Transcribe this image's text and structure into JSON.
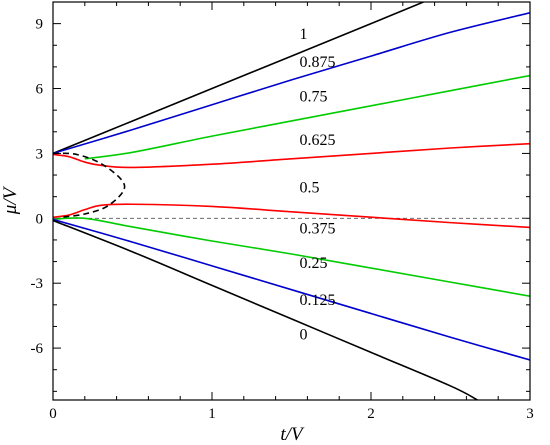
{
  "chart_data": {
    "type": "line",
    "xlabel": "t/V",
    "ylabel": "μ/V",
    "xlim": [
      0,
      3
    ],
    "ylim": [
      -8.4,
      10
    ],
    "x_ticks": [
      0,
      1,
      2,
      3
    ],
    "y_ticks": [
      -6,
      -3,
      0,
      3,
      6,
      9
    ],
    "grid": false,
    "series": [
      {
        "name": "1",
        "color": "#000000",
        "points": [
          [
            0,
            3.0
          ],
          [
            0.5,
            4.5
          ],
          [
            1.0,
            6.0
          ],
          [
            1.5,
            7.5
          ],
          [
            2.0,
            9.0
          ],
          [
            2.33,
            10.0
          ]
        ]
      },
      {
        "name": "0.875",
        "color": "#0000cc",
        "points": [
          [
            0,
            3.0
          ],
          [
            0.5,
            4.1
          ],
          [
            1.0,
            5.25
          ],
          [
            1.5,
            6.4
          ],
          [
            2.0,
            7.5
          ],
          [
            2.5,
            8.6
          ],
          [
            3.0,
            9.5
          ]
        ]
      },
      {
        "name": "0.75",
        "color": "#00cc00",
        "points": [
          [
            0.2,
            2.75
          ],
          [
            0.5,
            3.05
          ],
          [
            1.0,
            3.8
          ],
          [
            1.5,
            4.5
          ],
          [
            2.0,
            5.2
          ],
          [
            2.5,
            5.9
          ],
          [
            3.0,
            6.6
          ]
        ]
      },
      {
        "name": "0.625",
        "color": "#ff0000",
        "points": [
          [
            0,
            2.95
          ],
          [
            0.1,
            2.85
          ],
          [
            0.2,
            2.6
          ],
          [
            0.3,
            2.45
          ],
          [
            0.5,
            2.35
          ],
          [
            1.0,
            2.5
          ],
          [
            1.5,
            2.75
          ],
          [
            2.0,
            3.0
          ],
          [
            2.5,
            3.25
          ],
          [
            3.0,
            3.45
          ]
        ]
      },
      {
        "name": "0.375",
        "color": "#ff0000",
        "points": [
          [
            0,
            0.05
          ],
          [
            0.1,
            0.15
          ],
          [
            0.2,
            0.4
          ],
          [
            0.3,
            0.6
          ],
          [
            0.5,
            0.65
          ],
          [
            1.0,
            0.55
          ],
          [
            1.5,
            0.3
          ],
          [
            2.0,
            0.05
          ],
          [
            2.5,
            -0.2
          ],
          [
            3.0,
            -0.42
          ]
        ]
      },
      {
        "name": "0.25",
        "color": "#00cc00",
        "points": [
          [
            0,
            -0.05
          ],
          [
            0.2,
            0.0
          ],
          [
            0.5,
            -0.4
          ],
          [
            1.0,
            -1.05
          ],
          [
            1.5,
            -1.65
          ],
          [
            2.0,
            -2.3
          ],
          [
            2.5,
            -2.95
          ],
          [
            3.0,
            -3.6
          ]
        ]
      },
      {
        "name": "0.125",
        "color": "#0000cc",
        "points": [
          [
            0,
            -0.05
          ],
          [
            0.5,
            -1.1
          ],
          [
            1.0,
            -2.2
          ],
          [
            1.5,
            -3.3
          ],
          [
            2.0,
            -4.4
          ],
          [
            2.5,
            -5.5
          ],
          [
            3.0,
            -6.55
          ]
        ]
      },
      {
        "name": "0",
        "color": "#000000",
        "points": [
          [
            0,
            -0.1
          ],
          [
            0.5,
            -1.55
          ],
          [
            1.0,
            -3.1
          ],
          [
            1.5,
            -4.65
          ],
          [
            2.0,
            -6.2
          ],
          [
            2.5,
            -7.75
          ],
          [
            2.67,
            -8.4
          ]
        ]
      }
    ],
    "boundary": {
      "color": "#000000",
      "points": [
        [
          0,
          3.0
        ],
        [
          0.15,
          2.95
        ],
        [
          0.32,
          2.45
        ],
        [
          0.45,
          1.5
        ],
        [
          0.35,
          0.6
        ],
        [
          0.2,
          0.2
        ],
        [
          0.05,
          0.05
        ]
      ]
    },
    "zero_line": {
      "color": "#555555",
      "y": 0
    },
    "labels": [
      {
        "text": "1",
        "x": 1.55,
        "y": 8.3
      },
      {
        "text": "0.875",
        "x": 1.55,
        "y": 7.0
      },
      {
        "text": "0.75",
        "x": 1.55,
        "y": 5.4
      },
      {
        "text": "0.625",
        "x": 1.55,
        "y": 3.4
      },
      {
        "text": "0.5",
        "x": 1.55,
        "y": 1.2
      },
      {
        "text": "0.375",
        "x": 1.55,
        "y": -0.7
      },
      {
        "text": "0.25",
        "x": 1.55,
        "y": -2.3
      },
      {
        "text": "0.125",
        "x": 1.55,
        "y": -4.0
      },
      {
        "text": "0",
        "x": 1.55,
        "y": -5.6
      }
    ]
  }
}
